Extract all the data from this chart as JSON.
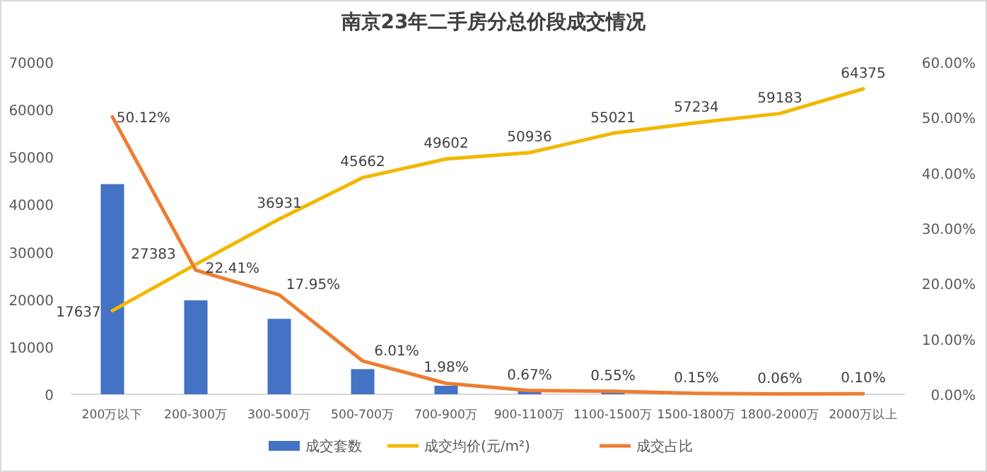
{
  "chart_data": {
    "type": "bar",
    "title": "南京23年二手房分总价段成交情况",
    "categories": [
      "200万以下",
      "200-300万",
      "300-500万",
      "500-700万",
      "700-900万",
      "900-1100万",
      "1100-1500万",
      "1500-1800万",
      "1800-2000万",
      "2000万以上"
    ],
    "series": [
      {
        "name": "成交套数",
        "color": "#4472c4",
        "values": [
          44300,
          19800,
          15900,
          5300,
          1800,
          600,
          500,
          100,
          null,
          null
        ]
      },
      {
        "name": "成交均价(元/m²)",
        "type": "line",
        "color": "#f2b800",
        "values": [
          17637,
          27383,
          36931,
          45662,
          49602,
          50936,
          55021,
          57234,
          59183,
          64375
        ],
        "value_labels": [
          "17637",
          "27383",
          "36931",
          "45662",
          "49602",
          "50936",
          "55021",
          "57234",
          "59183",
          "64375"
        ]
      },
      {
        "name": "成交占比",
        "type": "line",
        "axis": "y2",
        "color": "#ed7d31",
        "values": [
          50.12,
          22.41,
          17.95,
          6.01,
          1.98,
          0.67,
          0.55,
          0.15,
          0.06,
          0.1
        ],
        "value_labels": [
          "50.12%",
          "22.41%",
          "17.95%",
          "6.01%",
          "1.98%",
          "0.67%",
          "0.55%",
          "0.15%",
          "0.06%",
          "0.10%"
        ]
      }
    ],
    "ylim": [
      0,
      70000
    ],
    "yticks": [
      0,
      10000,
      20000,
      30000,
      40000,
      50000,
      60000,
      70000
    ],
    "y2lim": [
      0,
      60
    ],
    "y2ticks": [
      {
        "value": 0,
        "label": "0.00%"
      },
      {
        "value": 10,
        "label": "10.00%"
      },
      {
        "value": 20,
        "label": "20.00%"
      },
      {
        "value": 30,
        "label": "30.00%"
      },
      {
        "value": 40,
        "label": "40.00%"
      },
      {
        "value": 50,
        "label": "50.00%"
      },
      {
        "value": 60,
        "label": "60.00%"
      }
    ],
    "grid": false,
    "legend": "bottom",
    "marker": "none",
    "line_style": "solid"
  }
}
